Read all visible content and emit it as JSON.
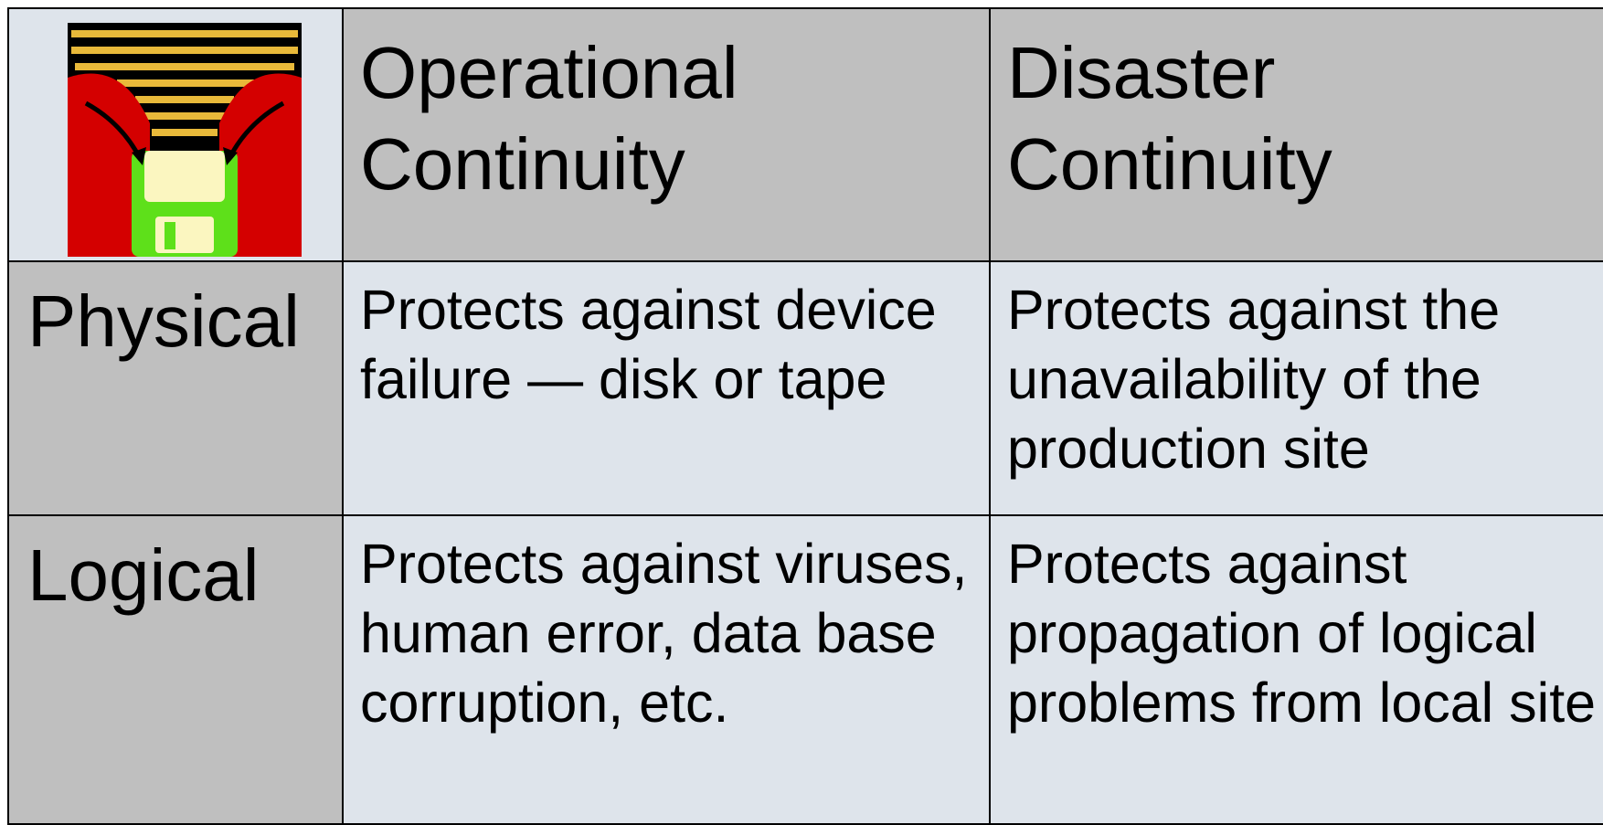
{
  "header": {
    "columns": [
      "Operational Continuity",
      "Disaster Continuity"
    ]
  },
  "rows": [
    {
      "label": "Physical",
      "cells": [
        "Protects against device failure — disk or tape",
        "Protects against the unavailability of the production site"
      ]
    },
    {
      "label": "Logical",
      "cells": [
        "Protects against viruses, human error, data base corruption, etc.",
        "Protects against propagation of logical problems from local site"
      ]
    }
  ]
}
